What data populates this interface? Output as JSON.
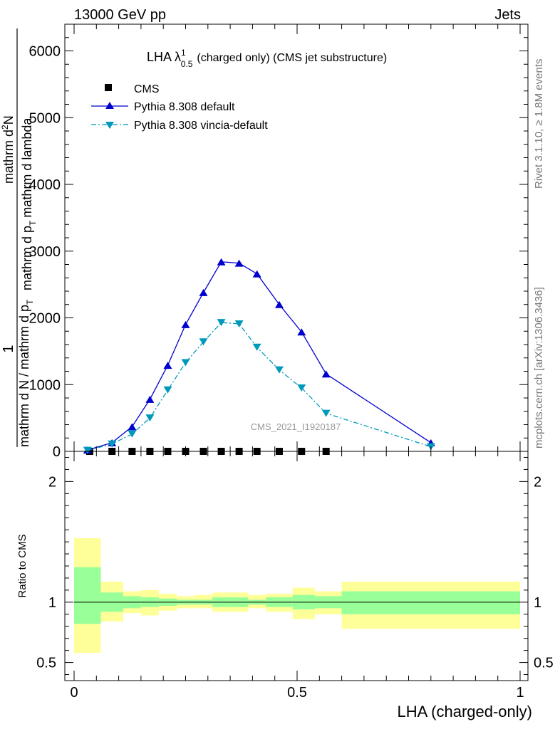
{
  "header": {
    "left": "13000 GeV pp",
    "right": "Jets"
  },
  "plot_title": {
    "main": "LHA λ",
    "sup": "1",
    "sub": "0.5",
    "rest": "(charged only) (CMS jet substructure)"
  },
  "side_labels": {
    "rivet": "Rivet 3.1.10, ≥ 1.8M events",
    "mcplots": "mcplots.cern.ch [arXiv:1306.3436]"
  },
  "watermark": "CMS_2021_I1920187",
  "ylabel_main": {
    "numerator": "1",
    "denominator": "mathrm d N / mathrm d p",
    "denominator_sub": "T",
    "second_line": "mathrm d^{2}N",
    "second_line_display": "mathrm d",
    "second_sup": "2",
    "second_rest": "N",
    "second_den": "mathrm d p",
    "second_den_sub": "T",
    "second_den_rest": "mathrm d lambda"
  },
  "ylabel_ratio": "Ratio to CMS",
  "xlabel": "LHA (charged-only)",
  "colors": {
    "default": "#0000cc",
    "vincia": "#0099bb",
    "band_inner": "#99ff99",
    "band_outer": "#ffff99"
  },
  "chart_data": [
    {
      "type": "line",
      "title": "LHA λ^1_0.5 (charged only) (CMS jet substructure)",
      "xlim": [
        0,
        1
      ],
      "ylim": [
        0,
        6400
      ],
      "yticks": [
        0,
        1000,
        2000,
        3000,
        4000,
        5000,
        6000
      ],
      "yticklabels": [
        "0",
        "1000",
        "2000",
        "3000",
        "4000",
        "5000",
        "6000"
      ],
      "legend_position": "top-left",
      "series": [
        {
          "name": "CMS",
          "marker": "square",
          "x": [
            0.035,
            0.085,
            0.13,
            0.17,
            0.21,
            0.25,
            0.29,
            0.33,
            0.37,
            0.41,
            0.46,
            0.51,
            0.565
          ],
          "y": [
            0,
            0,
            0,
            0,
            0,
            0,
            0,
            0,
            0,
            0,
            0,
            0,
            0
          ]
        },
        {
          "name": "Pythia 8.308 default",
          "marker": "triangle-up",
          "style": "solid",
          "x": [
            0.03,
            0.085,
            0.13,
            0.17,
            0.21,
            0.25,
            0.29,
            0.33,
            0.37,
            0.41,
            0.46,
            0.51,
            0.565,
            0.8
          ],
          "y": [
            20,
            130,
            370,
            780,
            1290,
            1900,
            2380,
            2840,
            2820,
            2660,
            2200,
            1790,
            1160,
            130
          ]
        },
        {
          "name": "Pythia 8.308 vincia-default",
          "marker": "triangle-down",
          "style": "dash-dot",
          "x": [
            0.03,
            0.085,
            0.13,
            0.17,
            0.21,
            0.25,
            0.29,
            0.33,
            0.37,
            0.41,
            0.46,
            0.51,
            0.565,
            0.8
          ],
          "y": [
            15,
            110,
            260,
            500,
            920,
            1330,
            1640,
            1930,
            1910,
            1560,
            1220,
            950,
            570,
            70
          ]
        }
      ]
    },
    {
      "type": "area",
      "xlabel": "LHA (charged-only)",
      "ylabel": "Ratio to CMS",
      "xlim": [
        0,
        1
      ],
      "ylim": [
        0.35,
        2.25
      ],
      "xticks": [
        0,
        0.5,
        1
      ],
      "xticklabels": [
        "0",
        "0.5",
        "1"
      ],
      "yticks": [
        0.5,
        1,
        2
      ],
      "yticklabels": [
        "0.5",
        "1",
        "2"
      ],
      "bins": [
        {
          "lo": 0.0,
          "hi": 0.06,
          "inner": [
            0.82,
            1.29
          ],
          "outer": [
            0.58,
            1.53
          ]
        },
        {
          "lo": 0.06,
          "hi": 0.11,
          "inner": [
            0.92,
            1.08
          ],
          "outer": [
            0.84,
            1.17
          ]
        },
        {
          "lo": 0.11,
          "hi": 0.15,
          "inner": [
            0.95,
            1.05
          ],
          "outer": [
            0.91,
            1.09
          ]
        },
        {
          "lo": 0.15,
          "hi": 0.19,
          "inner": [
            0.96,
            1.04
          ],
          "outer": [
            0.89,
            1.1
          ]
        },
        {
          "lo": 0.19,
          "hi": 0.23,
          "inner": [
            0.97,
            1.03
          ],
          "outer": [
            0.93,
            1.07
          ]
        },
        {
          "lo": 0.23,
          "hi": 0.27,
          "inner": [
            0.98,
            1.02
          ],
          "outer": [
            0.95,
            1.05
          ]
        },
        {
          "lo": 0.27,
          "hi": 0.31,
          "inner": [
            0.98,
            1.02
          ],
          "outer": [
            0.95,
            1.06
          ]
        },
        {
          "lo": 0.31,
          "hi": 0.35,
          "inner": [
            0.96,
            1.04
          ],
          "outer": [
            0.92,
            1.08
          ]
        },
        {
          "lo": 0.35,
          "hi": 0.39,
          "inner": [
            0.96,
            1.04
          ],
          "outer": [
            0.92,
            1.08
          ]
        },
        {
          "lo": 0.39,
          "hi": 0.43,
          "inner": [
            0.98,
            1.02
          ],
          "outer": [
            0.95,
            1.06
          ]
        },
        {
          "lo": 0.43,
          "hi": 0.49,
          "inner": [
            0.96,
            1.04
          ],
          "outer": [
            0.92,
            1.07
          ]
        },
        {
          "lo": 0.49,
          "hi": 0.54,
          "inner": [
            0.94,
            1.06
          ],
          "outer": [
            0.86,
            1.12
          ]
        },
        {
          "lo": 0.54,
          "hi": 0.6,
          "inner": [
            0.95,
            1.05
          ],
          "outer": [
            0.9,
            1.09
          ]
        },
        {
          "lo": 0.6,
          "hi": 1.0,
          "inner": [
            0.9,
            1.09
          ],
          "outer": [
            0.78,
            1.17
          ]
        }
      ],
      "reference_line": 1
    }
  ]
}
